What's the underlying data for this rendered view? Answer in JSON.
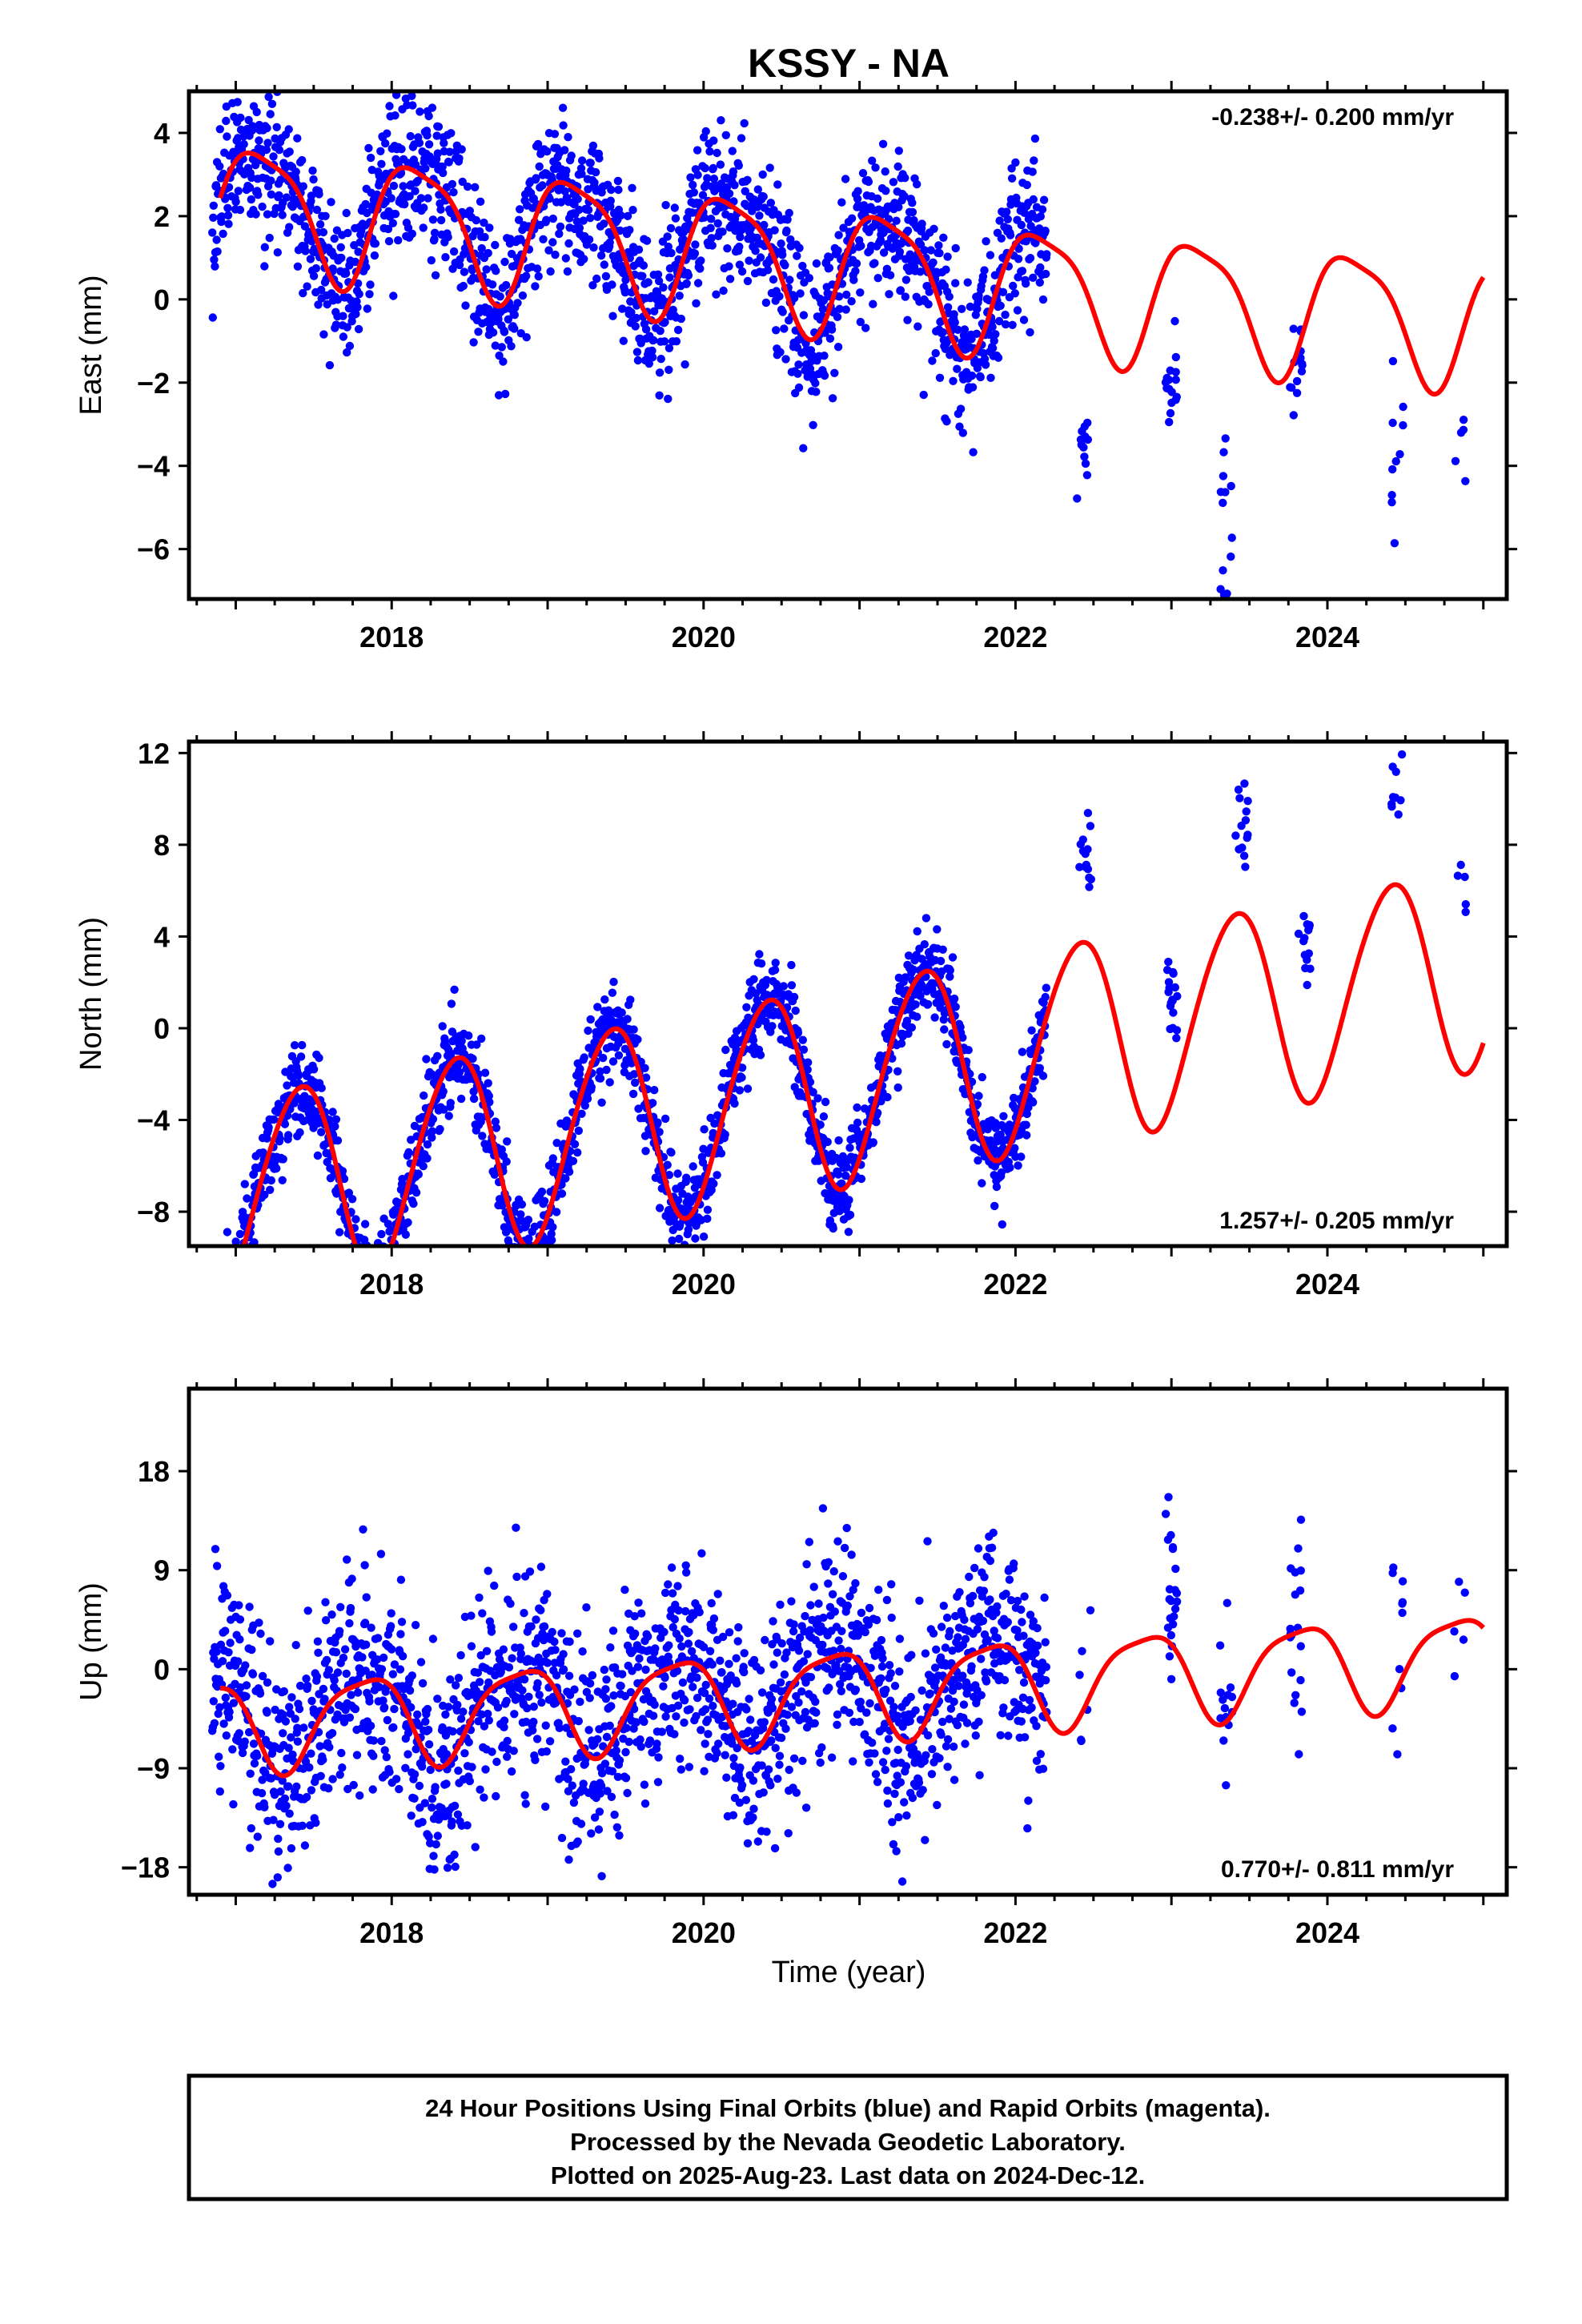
{
  "title": "KSSY - NA",
  "xlabel": "Time (year)",
  "footer": [
    "24 Hour Positions Using Final Orbits (blue) and Rapid Orbits (magenta).",
    "Processed by the Nevada Geodetic Laboratory.",
    "Plotted on 2025-Aug-23. Last data on 2024-Dec-12."
  ],
  "colors": {
    "points": "#0000ff",
    "model": "#ff0000",
    "frame": "#000000"
  },
  "chart_data": [
    {
      "type": "scatter",
      "name": "east",
      "ylabel": "East (mm)",
      "rate_text": "-0.238+/- 0.200 mm/yr",
      "rate_position": "top-right",
      "xlim": [
        2016.7,
        2025.15
      ],
      "ylim": [
        -7.2,
        5.0
      ],
      "xticks": [
        2018,
        2020,
        2022,
        2024
      ],
      "xtick_labels": [
        "2018",
        "2020",
        "2022",
        "2024"
      ],
      "yticks": [
        4,
        2,
        0,
        -2,
        -4,
        -6
      ],
      "ytick_labels": [
        "4",
        "2",
        "0",
        "−2",
        "−4",
        "−6"
      ],
      "model": {
        "name": "fit",
        "offset": 1.45,
        "trend": -0.238,
        "ann_a": 0.75,
        "ann_b": 1.3,
        "semi_a": 0.3,
        "semi_b": -0.2,
        "knots": [
          [
            2016.9,
            0
          ],
          [
            2019.5,
            -0.3
          ],
          [
            2022.0,
            -0.8
          ],
          [
            2025.0,
            -0.9
          ]
        ]
      },
      "points_model": {
        "noise": 0.9,
        "spread_t": [
          2016.85,
          2022.2
        ],
        "clusters": [
          {
            "t": 2022.43,
            "y": -3.6,
            "n": 12,
            "dy": 0.8
          },
          {
            "t": 2023.0,
            "y": -1.9,
            "n": 16,
            "dy": 0.6
          },
          {
            "t": 2023.35,
            "y": -5.2,
            "n": 14,
            "dy": 1.2
          },
          {
            "t": 2023.8,
            "y": -1.4,
            "n": 16,
            "dy": 0.7
          },
          {
            "t": 2024.45,
            "y": -4.2,
            "n": 10,
            "dy": 1.0
          },
          {
            "t": 2024.85,
            "y": -3.4,
            "n": 5,
            "dy": 0.6
          }
        ]
      }
    },
    {
      "type": "scatter",
      "name": "north",
      "ylabel": "North (mm)",
      "rate_text": "1.257+/- 0.205 mm/yr",
      "rate_position": "bottom-right",
      "xlim": [
        2016.7,
        2025.15
      ],
      "ylim": [
        -9.5,
        12.5
      ],
      "xticks": [
        2018,
        2020,
        2022,
        2024
      ],
      "xtick_labels": [
        "2018",
        "2020",
        "2022",
        "2024"
      ],
      "yticks": [
        12,
        8,
        4,
        0,
        -4,
        -8
      ],
      "ytick_labels": [
        "12",
        "8",
        "4",
        "0",
        "−4",
        "−8"
      ],
      "model": {
        "name": "fit",
        "offset": -2.9,
        "trend": 1.257,
        "ann_a": -3.6,
        "ann_b": 2.5,
        "semi_a": 0.2,
        "semi_b": 0.3,
        "knots": [
          [
            2016.9,
            0
          ],
          [
            2019.0,
            0
          ],
          [
            2022.0,
            0
          ],
          [
            2025.0,
            0
          ]
        ]
      },
      "points_model": {
        "noise": 0.95,
        "spread_t": [
          2016.85,
          2022.2
        ],
        "clusters": [
          {
            "t": 2022.45,
            "y": 7.0,
            "n": 14,
            "dy": 1.2
          },
          {
            "t": 2023.0,
            "y": 1.5,
            "n": 18,
            "dy": 1.0
          },
          {
            "t": 2023.45,
            "y": 8.8,
            "n": 14,
            "dy": 1.2
          },
          {
            "t": 2023.85,
            "y": 3.6,
            "n": 14,
            "dy": 0.8
          },
          {
            "t": 2024.45,
            "y": 10.2,
            "n": 10,
            "dy": 1.0
          },
          {
            "t": 2024.85,
            "y": 6.5,
            "n": 5,
            "dy": 0.8
          }
        ]
      }
    },
    {
      "type": "scatter",
      "name": "up",
      "ylabel": "Up (mm)",
      "rate_text": "0.770+/- 0.811 mm/yr",
      "rate_position": "bottom-right",
      "xlim": [
        2016.7,
        2025.15
      ],
      "ylim": [
        -20.5,
        25.5
      ],
      "xticks": [
        2018,
        2020,
        2022,
        2024
      ],
      "xtick_labels": [
        "2018",
        "2020",
        "2022",
        "2024"
      ],
      "yticks": [
        18,
        9,
        0,
        -9,
        -18
      ],
      "ytick_labels": [
        "18",
        "9",
        "0",
        "−9",
        "−18"
      ],
      "model": {
        "name": "fit",
        "offset": -2.3,
        "trend": 0.77,
        "ann_a": 1.8,
        "ann_b": -3.6,
        "semi_a": 0.8,
        "semi_b": 0.5,
        "knots": [
          [
            2016.9,
            0
          ],
          [
            2019.5,
            0
          ],
          [
            2022.0,
            0
          ],
          [
            2025.0,
            0
          ]
        ]
      },
      "points_model": {
        "noise": 4.6,
        "spread_t": [
          2016.85,
          2022.2
        ],
        "clusters": [
          {
            "t": 2022.45,
            "y": 2.0,
            "n": 6,
            "dy": 5.0
          },
          {
            "t": 2023.0,
            "y": 6.0,
            "n": 22,
            "dy": 6.0
          },
          {
            "t": 2023.35,
            "y": -3.0,
            "n": 14,
            "dy": 5.0
          },
          {
            "t": 2023.8,
            "y": 4.0,
            "n": 20,
            "dy": 6.0
          },
          {
            "t": 2024.45,
            "y": 4.0,
            "n": 10,
            "dy": 5.0
          },
          {
            "t": 2024.85,
            "y": 4.5,
            "n": 5,
            "dy": 4.0
          }
        ]
      }
    }
  ]
}
